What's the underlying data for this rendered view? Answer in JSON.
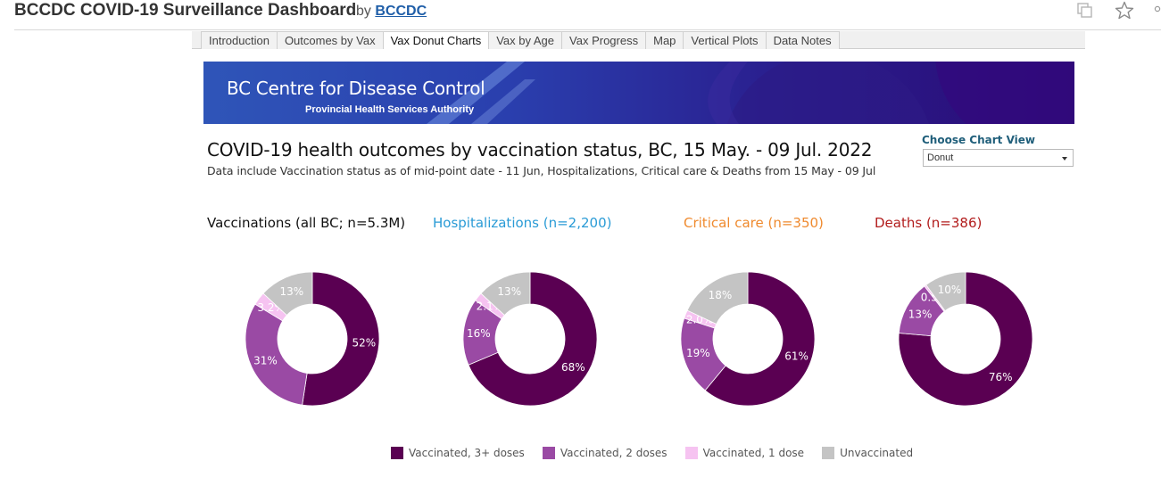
{
  "header": {
    "title": "BCCDC COVID-19 Surveillance Dashboard",
    "by": "by",
    "author": "BCCDC"
  },
  "tabs": [
    {
      "label": "Introduction",
      "active": false
    },
    {
      "label": "Outcomes by Vax",
      "active": false
    },
    {
      "label": "Vax Donut Charts",
      "active": true
    },
    {
      "label": "Vax by Age",
      "active": false
    },
    {
      "label": "Vax Progress",
      "active": false
    },
    {
      "label": "Map",
      "active": false
    },
    {
      "label": "Vertical Plots",
      "active": false
    },
    {
      "label": "Data Notes",
      "active": false
    }
  ],
  "banner": {
    "org": "BC Centre for Disease Control",
    "sub": "Provincial Health Services Authority"
  },
  "main": {
    "title": "COVID-19 health outcomes by vaccination status, BC,  15 May. - 09 Jul. 2022",
    "note": "Data include Vaccination status as of mid-point date - 11 Jun, Hospitalizations, Critical care & Deaths from 15 May - 09 Jul"
  },
  "view": {
    "label": "Choose Chart View",
    "selected": "Donut"
  },
  "colors": {
    "vax3": "#5a0052",
    "vax2": "#9a4aa4",
    "vax1": "#f6c3f1",
    "unvax": "#c4c4c4",
    "hosp_title": "#2a9bd6",
    "crit_title": "#ef8a2e",
    "death_title": "#b21d1d",
    "vacc_title": "#111111"
  },
  "chart_data": [
    {
      "type": "pie",
      "title": "Vaccinations (all BC; n=5.3M)",
      "title_color": "#111111",
      "categories": [
        "Vaccinated, 3+ doses",
        "Vaccinated, 2 doses",
        "Vaccinated, 1 dose",
        "Unvaccinated"
      ],
      "values": [
        52,
        31,
        3.2,
        13
      ],
      "labels": [
        "52%",
        "31%",
        "3.2%",
        "13%"
      ]
    },
    {
      "type": "pie",
      "title": "Hospitalizations (n=2,200)",
      "title_color": "#2a9bd6",
      "categories": [
        "Vaccinated, 3+ doses",
        "Vaccinated, 2 doses",
        "Vaccinated, 1 dose",
        "Unvaccinated"
      ],
      "values": [
        68,
        16,
        2.1,
        13
      ],
      "labels": [
        "68%",
        "16%",
        "2.1%",
        "13%"
      ]
    },
    {
      "type": "pie",
      "title": "Critical care (n=350)",
      "title_color": "#ef8a2e",
      "categories": [
        "Vaccinated, 3+ doses",
        "Vaccinated, 2 doses",
        "Vaccinated, 1 dose",
        "Unvaccinated"
      ],
      "values": [
        61,
        19,
        2.0,
        18
      ],
      "labels": [
        "61%",
        "19%",
        "2.0%",
        "18%"
      ]
    },
    {
      "type": "pie",
      "title": "Deaths (n=386)",
      "title_color": "#b21d1d",
      "categories": [
        "Vaccinated, 3+ doses",
        "Vaccinated, 2 doses",
        "Vaccinated, 1 dose",
        "Unvaccinated"
      ],
      "values": [
        76,
        13,
        0.5,
        10
      ],
      "labels": [
        "76%",
        "13%",
        "0.5%",
        "10%"
      ]
    }
  ],
  "legend": [
    {
      "label": "Vaccinated, 3+ doses",
      "color": "#5a0052"
    },
    {
      "label": "Vaccinated, 2 doses",
      "color": "#9a4aa4"
    },
    {
      "label": "Vaccinated, 1 dose",
      "color": "#f6c3f1"
    },
    {
      "label": "Unvaccinated",
      "color": "#c4c4c4"
    }
  ]
}
